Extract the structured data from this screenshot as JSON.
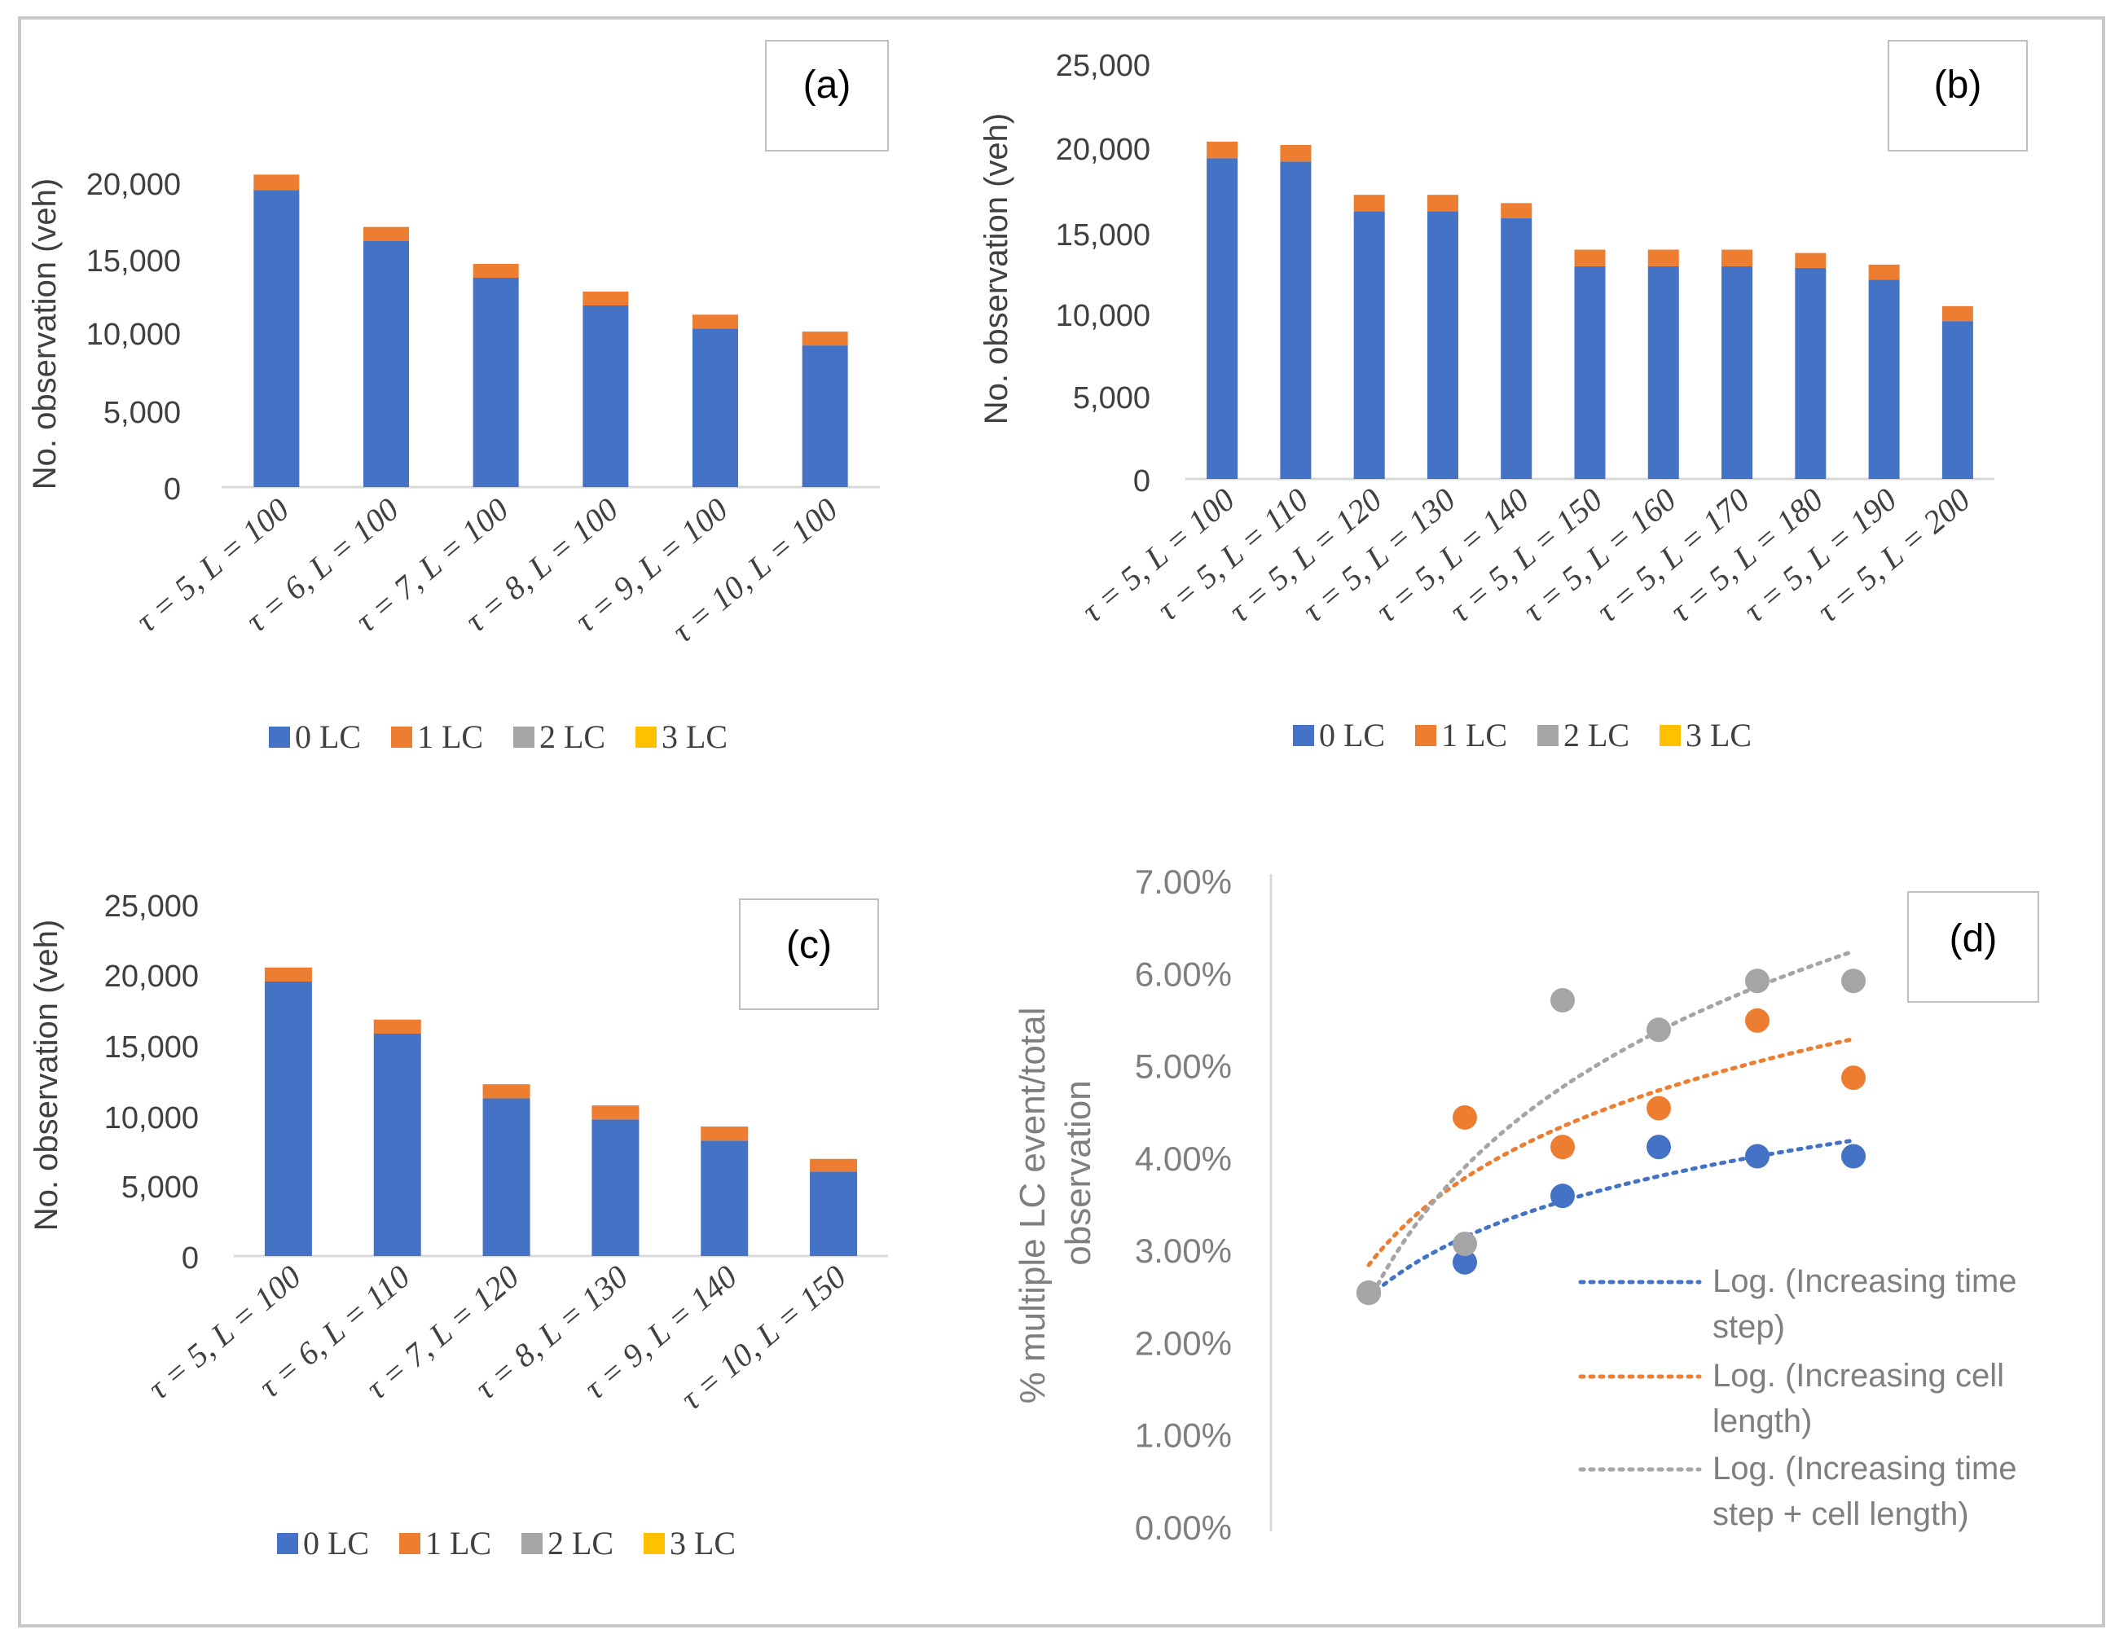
{
  "legend_labels": [
    "0 LC",
    "1 LC",
    "2 LC",
    "3 LC"
  ],
  "chart_data": [
    {
      "panel": "(a)",
      "type": "bar",
      "stacked": true,
      "ylabel": "No. observation (veh)",
      "ylim": [
        0,
        20000
      ],
      "yticks": [
        "0",
        "5,000",
        "10,000",
        "15,000",
        "20,000"
      ],
      "ytick_values": [
        0,
        5000,
        10000,
        15000,
        20000
      ],
      "categories": [
        "τ = 5, L = 100",
        "τ = 6, L = 100",
        "τ = 7, L = 100",
        "τ = 8, L = 100",
        "τ = 9, L = 100",
        "τ = 10, L = 100"
      ],
      "series": [
        {
          "name": "0 LC",
          "color": "#4472c4",
          "values": [
            19300,
            16000,
            13600,
            11800,
            10300,
            9200
          ]
        },
        {
          "name": "1 LC",
          "color": "#ed7d31",
          "values": [
            1000,
            900,
            900,
            900,
            900,
            900
          ]
        },
        {
          "name": "2 LC",
          "color": "#a5a5a5",
          "values": [
            0,
            0,
            0,
            0,
            0,
            0
          ]
        },
        {
          "name": "3 LC",
          "color": "#ffc000",
          "values": [
            0,
            0,
            0,
            0,
            0,
            0
          ]
        }
      ]
    },
    {
      "panel": "(b)",
      "type": "bar",
      "stacked": true,
      "ylabel": "No. observation (veh)",
      "ylim": [
        0,
        25000
      ],
      "yticks": [
        "0",
        "5,000",
        "10,000",
        "15,000",
        "20,000",
        "25,000"
      ],
      "ytick_values": [
        0,
        5000,
        10000,
        15000,
        20000,
        25000
      ],
      "categories": [
        "τ = 5, L = 100",
        "τ = 5, L = 110",
        "τ = 5, L = 120",
        "τ = 5, L = 130",
        "τ = 5, L = 140",
        "τ = 5, L = 150",
        "τ = 5, L = 160",
        "τ = 5, L = 170",
        "τ = 5, L = 180",
        "τ = 5, L = 190",
        "τ = 5, L = 200"
      ],
      "series": [
        {
          "name": "0 LC",
          "color": "#4472c4",
          "values": [
            19300,
            19100,
            16100,
            16100,
            15700,
            12800,
            12800,
            12800,
            12700,
            12000,
            9500
          ]
        },
        {
          "name": "1 LC",
          "color": "#ed7d31",
          "values": [
            1000,
            1000,
            1000,
            1000,
            900,
            1000,
            1000,
            1000,
            900,
            900,
            900
          ]
        },
        {
          "name": "2 LC",
          "color": "#a5a5a5",
          "values": [
            0,
            0,
            0,
            0,
            0,
            0,
            0,
            0,
            0,
            0,
            0
          ]
        },
        {
          "name": "3 LC",
          "color": "#ffc000",
          "values": [
            0,
            0,
            0,
            0,
            0,
            0,
            0,
            0,
            0,
            0,
            0
          ]
        }
      ]
    },
    {
      "panel": "(c)",
      "type": "bar",
      "stacked": true,
      "ylabel": "No. observation (veh)",
      "ylim": [
        0,
        25000
      ],
      "yticks": [
        "0",
        "5,000",
        "10,000",
        "15,000",
        "20,000",
        "25,000"
      ],
      "ytick_values": [
        0,
        5000,
        10000,
        15000,
        20000,
        25000
      ],
      "categories": [
        "τ = 5, L = 100",
        "τ = 6, L = 110",
        "τ = 7, L = 120",
        "τ = 8, L = 130",
        "τ = 9, L = 140",
        "τ = 10, L = 150"
      ],
      "series": [
        {
          "name": "0 LC",
          "color": "#4472c4",
          "values": [
            19500,
            15800,
            11200,
            9700,
            8200,
            6000
          ]
        },
        {
          "name": "1 LC",
          "color": "#ed7d31",
          "values": [
            1000,
            1000,
            1000,
            1000,
            1000,
            900
          ]
        },
        {
          "name": "2 LC",
          "color": "#a5a5a5",
          "values": [
            0,
            0,
            0,
            0,
            0,
            0
          ]
        },
        {
          "name": "3 LC",
          "color": "#ffc000",
          "values": [
            0,
            0,
            0,
            0,
            0,
            0
          ]
        }
      ]
    },
    {
      "panel": "(d)",
      "type": "scatter",
      "ylabel": [
        "% multiple LC event/total",
        "observation"
      ],
      "ylim": [
        0,
        0.07
      ],
      "yticks": [
        "0.00%",
        "1.00%",
        "2.00%",
        "3.00%",
        "4.00%",
        "5.00%",
        "6.00%",
        "7.00%"
      ],
      "ytick_values": [
        0,
        0.01,
        0.02,
        0.03,
        0.04,
        0.05,
        0.06,
        0.07
      ],
      "x": [
        1,
        2,
        3,
        4,
        5,
        6
      ],
      "series": [
        {
          "name": "Increasing time step",
          "color": "#4472c4",
          "values": [
            0.0255,
            0.0288,
            0.036,
            0.0413,
            0.0403,
            0.0403
          ],
          "trend": [
            0.025,
            0.042
          ]
        },
        {
          "name": "Increasing cell length",
          "color": "#ed7d31",
          "values": [
            0.0255,
            0.0445,
            0.0413,
            0.0455,
            0.055,
            0.0488
          ],
          "trend": [
            0.0285,
            0.053
          ]
        },
        {
          "name": "Increasing time step + cell length",
          "color": "#a5a5a5",
          "values": [
            0.0255,
            0.0308,
            0.0572,
            0.054,
            0.0593,
            0.0593
          ],
          "trend": [
            0.0245,
            0.0625
          ]
        }
      ],
      "legend": [
        [
          "Log. (Increasing time",
          "step)"
        ],
        [
          "Log. (Increasing cell",
          "length)"
        ],
        [
          "Log. (Increasing time",
          "step + cell length)"
        ]
      ]
    }
  ]
}
